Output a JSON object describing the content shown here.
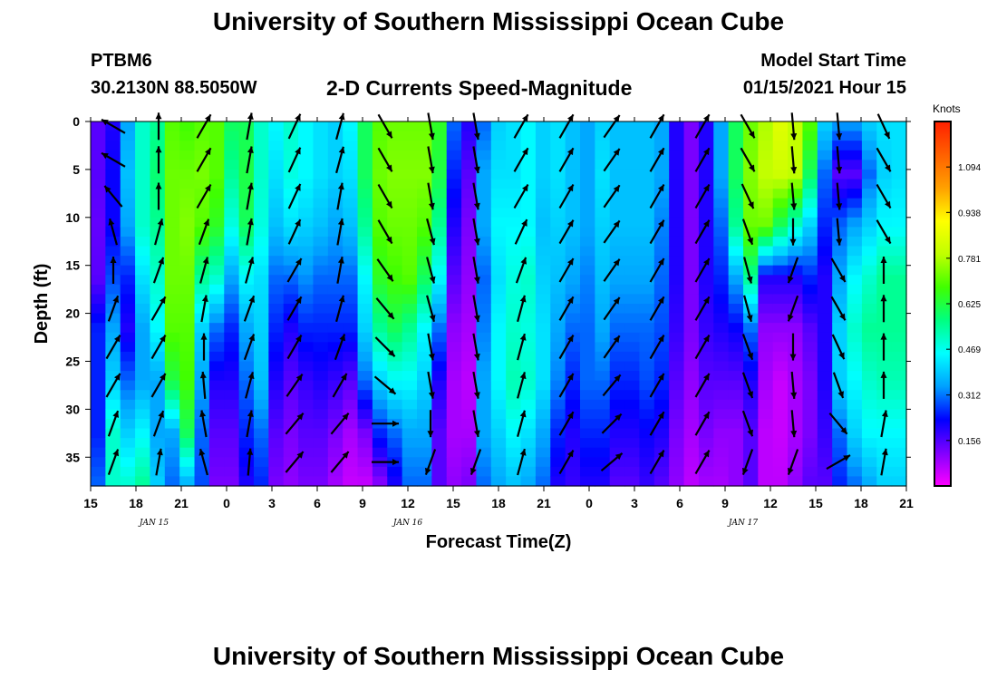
{
  "header": {
    "title": "University of Southern Mississippi Ocean Cube",
    "station": "PTBM6",
    "coords": "30.2130N 88.5050W",
    "subtitle": "2-D Currents Speed-Magnitude",
    "model_start_label": "Model Start Time",
    "model_start_value": "01/15/2021 Hour 15"
  },
  "footer": {
    "title": "University of Southern Mississippi Ocean Cube"
  },
  "chart_data": {
    "type": "heatmap",
    "xlabel": "Forecast Time(Z)",
    "ylabel": "Depth (ft)",
    "x_ticks": [
      "15",
      "18",
      "21",
      "0",
      "3",
      "6",
      "9",
      "12",
      "15",
      "18",
      "21",
      "0",
      "3",
      "6",
      "9",
      "12",
      "15",
      "18",
      "21"
    ],
    "date_labels": [
      {
        "label": "JAN  15",
        "at_tick": 1.4
      },
      {
        "label": "JAN  16",
        "at_tick": 7.0
      },
      {
        "label": "JAN  17",
        "at_tick": 14.4
      }
    ],
    "y_ticks": [
      0,
      5,
      10,
      15,
      20,
      25,
      30,
      35
    ],
    "ylim": [
      0,
      38
    ],
    "colorbar": {
      "unit": "Knots",
      "ticks": [
        "1.094",
        "0.938",
        "0.781",
        "0.625",
        "0.469",
        "0.312",
        "0.156"
      ],
      "range": [
        0,
        1.25
      ],
      "colors": [
        "#ff00ff",
        "#8000ff",
        "#0000ff",
        "#00a0ff",
        "#00ffff",
        "#00ff80",
        "#40ff00",
        "#c0ff00",
        "#ffff00",
        "#ffa000",
        "#ff6000",
        "#ff2000"
      ]
    },
    "columns": [
      {
        "time": "15",
        "profile": [
          0.15,
          0.15,
          0.14,
          0.15,
          0.25,
          0.25,
          0.25,
          0.3
        ]
      },
      {
        "time": "16",
        "profile": [
          0.2,
          0.22,
          0.22,
          0.28,
          0.35,
          0.4,
          0.5,
          0.5
        ]
      },
      {
        "time": "17",
        "profile": [
          0.35,
          0.38,
          0.35,
          0.25,
          0.2,
          0.3,
          0.4,
          0.5
        ]
      },
      {
        "time": "18",
        "profile": [
          0.5,
          0.5,
          0.5,
          0.42,
          0.35,
          0.35,
          0.45,
          0.55
        ]
      },
      {
        "time": "19",
        "profile": [
          0.55,
          0.58,
          0.55,
          0.5,
          0.45,
          0.35,
          0.35,
          0.4
        ]
      },
      {
        "time": "20",
        "profile": [
          0.7,
          0.72,
          0.72,
          0.72,
          0.7,
          0.62,
          0.35,
          0.3
        ]
      },
      {
        "time": "21",
        "profile": [
          0.68,
          0.72,
          0.74,
          0.72,
          0.7,
          0.68,
          0.6,
          0.35
        ]
      },
      {
        "time": "22",
        "profile": [
          0.7,
          0.73,
          0.7,
          0.55,
          0.4,
          0.35,
          0.3,
          0.28
        ]
      },
      {
        "time": "23",
        "profile": [
          0.7,
          0.7,
          0.65,
          0.5,
          0.3,
          0.2,
          0.15,
          0.12
        ]
      },
      {
        "time": "0",
        "profile": [
          0.6,
          0.55,
          0.48,
          0.35,
          0.25,
          0.2,
          0.15,
          0.12
        ]
      },
      {
        "time": "1",
        "profile": [
          0.6,
          0.62,
          0.6,
          0.45,
          0.35,
          0.3,
          0.25,
          0.2
        ]
      },
      {
        "time": "2",
        "profile": [
          0.5,
          0.5,
          0.48,
          0.42,
          0.4,
          0.38,
          0.3,
          0.25
        ]
      },
      {
        "time": "3",
        "profile": [
          0.45,
          0.42,
          0.38,
          0.3,
          0.25,
          0.2,
          0.15,
          0.12
        ]
      },
      {
        "time": "4",
        "profile": [
          0.5,
          0.48,
          0.42,
          0.3,
          0.2,
          0.15,
          0.12,
          0.1
        ]
      },
      {
        "time": "5",
        "profile": [
          0.45,
          0.45,
          0.4,
          0.33,
          0.25,
          0.18,
          0.15,
          0.12
        ]
      },
      {
        "time": "6",
        "profile": [
          0.42,
          0.42,
          0.38,
          0.3,
          0.25,
          0.2,
          0.15,
          0.12
        ]
      },
      {
        "time": "7",
        "profile": [
          0.4,
          0.4,
          0.35,
          0.3,
          0.25,
          0.18,
          0.12,
          0.08
        ]
      },
      {
        "time": "8",
        "profile": [
          0.45,
          0.42,
          0.38,
          0.3,
          0.25,
          0.15,
          0.08,
          0.05
        ]
      },
      {
        "time": "9",
        "profile": [
          0.6,
          0.6,
          0.55,
          0.45,
          0.4,
          0.3,
          0.12,
          0.05
        ]
      },
      {
        "time": "10",
        "profile": [
          0.7,
          0.72,
          0.7,
          0.65,
          0.55,
          0.4,
          0.25,
          0.1
        ]
      },
      {
        "time": "11",
        "profile": [
          0.72,
          0.74,
          0.72,
          0.68,
          0.6,
          0.45,
          0.3,
          0.2
        ]
      },
      {
        "time": "12",
        "profile": [
          0.72,
          0.74,
          0.72,
          0.7,
          0.55,
          0.45,
          0.35,
          0.3
        ]
      },
      {
        "time": "13",
        "profile": [
          0.72,
          0.74,
          0.7,
          0.6,
          0.45,
          0.4,
          0.35,
          0.3
        ]
      },
      {
        "time": "14",
        "profile": [
          0.65,
          0.62,
          0.55,
          0.45,
          0.3,
          0.2,
          0.15,
          0.15
        ]
      },
      {
        "time": "15",
        "profile": [
          0.3,
          0.25,
          0.2,
          0.15,
          0.1,
          0.08,
          0.08,
          0.1
        ]
      },
      {
        "time": "16",
        "profile": [
          0.2,
          0.15,
          0.12,
          0.1,
          0.08,
          0.06,
          0.08,
          0.12
        ]
      },
      {
        "time": "17",
        "profile": [
          0.3,
          0.35,
          0.35,
          0.3,
          0.32,
          0.35,
          0.35,
          0.3
        ]
      },
      {
        "time": "18",
        "profile": [
          0.4,
          0.42,
          0.45,
          0.42,
          0.45,
          0.45,
          0.4,
          0.35
        ]
      },
      {
        "time": "19",
        "profile": [
          0.42,
          0.42,
          0.45,
          0.48,
          0.5,
          0.52,
          0.45,
          0.38
        ]
      },
      {
        "time": "20",
        "profile": [
          0.45,
          0.45,
          0.45,
          0.5,
          0.48,
          0.5,
          0.42,
          0.35
        ]
      },
      {
        "time": "21",
        "profile": [
          0.4,
          0.4,
          0.38,
          0.4,
          0.42,
          0.42,
          0.35,
          0.3
        ]
      },
      {
        "time": "22",
        "profile": [
          0.42,
          0.42,
          0.4,
          0.38,
          0.35,
          0.32,
          0.25,
          0.2
        ]
      },
      {
        "time": "23",
        "profile": [
          0.38,
          0.38,
          0.38,
          0.35,
          0.3,
          0.25,
          0.2,
          0.18
        ]
      },
      {
        "time": "0",
        "profile": [
          0.35,
          0.35,
          0.35,
          0.32,
          0.3,
          0.3,
          0.25,
          0.2
        ]
      },
      {
        "time": "1",
        "profile": [
          0.4,
          0.42,
          0.4,
          0.38,
          0.35,
          0.3,
          0.25,
          0.2
        ]
      },
      {
        "time": "2",
        "profile": [
          0.38,
          0.38,
          0.38,
          0.35,
          0.3,
          0.25,
          0.2,
          0.15
        ]
      },
      {
        "time": "3",
        "profile": [
          0.38,
          0.38,
          0.38,
          0.35,
          0.3,
          0.25,
          0.2,
          0.15
        ]
      },
      {
        "time": "4",
        "profile": [
          0.38,
          0.38,
          0.38,
          0.35,
          0.3,
          0.28,
          0.22,
          0.18
        ]
      },
      {
        "time": "5",
        "profile": [
          0.35,
          0.35,
          0.32,
          0.3,
          0.28,
          0.25,
          0.2,
          0.15
        ]
      },
      {
        "time": "6",
        "profile": [
          0.2,
          0.2,
          0.2,
          0.2,
          0.18,
          0.15,
          0.12,
          0.1
        ]
      },
      {
        "time": "7",
        "profile": [
          0.12,
          0.12,
          0.12,
          0.12,
          0.12,
          0.1,
          0.08,
          0.06
        ]
      },
      {
        "time": "8",
        "profile": [
          0.2,
          0.2,
          0.2,
          0.2,
          0.18,
          0.15,
          0.12,
          0.08
        ]
      },
      {
        "time": "9",
        "profile": [
          0.35,
          0.35,
          0.3,
          0.25,
          0.2,
          0.15,
          0.1,
          0.08
        ]
      },
      {
        "time": "10",
        "profile": [
          0.6,
          0.6,
          0.55,
          0.35,
          0.22,
          0.15,
          0.1,
          0.1
        ]
      },
      {
        "time": "11",
        "profile": [
          0.72,
          0.74,
          0.72,
          0.55,
          0.3,
          0.2,
          0.15,
          0.15
        ]
      },
      {
        "time": "12",
        "profile": [
          0.78,
          0.8,
          0.72,
          0.2,
          0.1,
          0.08,
          0.06,
          0.06
        ]
      },
      {
        "time": "13",
        "profile": [
          0.85,
          0.82,
          0.6,
          0.2,
          0.1,
          0.05,
          0.05,
          0.06
        ]
      },
      {
        "time": "14",
        "profile": [
          0.8,
          0.8,
          0.5,
          0.2,
          0.1,
          0.08,
          0.08,
          0.1
        ]
      },
      {
        "time": "15",
        "profile": [
          0.7,
          0.6,
          0.4,
          0.25,
          0.15,
          0.12,
          0.12,
          0.15
        ]
      },
      {
        "time": "16",
        "profile": [
          0.4,
          0.3,
          0.25,
          0.2,
          0.2,
          0.2,
          0.18,
          0.15
        ]
      },
      {
        "time": "17",
        "profile": [
          0.35,
          0.15,
          0.3,
          0.35,
          0.4,
          0.4,
          0.3,
          0.25
        ]
      },
      {
        "time": "18",
        "profile": [
          0.35,
          0.15,
          0.35,
          0.45,
          0.5,
          0.45,
          0.4,
          0.3
        ]
      },
      {
        "time": "19",
        "profile": [
          0.4,
          0.3,
          0.4,
          0.5,
          0.55,
          0.5,
          0.45,
          0.35
        ]
      },
      {
        "time": "20",
        "profile": [
          0.42,
          0.4,
          0.45,
          0.55,
          0.55,
          0.52,
          0.45,
          0.4
        ]
      },
      {
        "time": "21",
        "profile": [
          0.42,
          0.42,
          0.45,
          0.55,
          0.55,
          0.52,
          0.45,
          0.4
        ]
      }
    ],
    "vectors": {
      "depths": [
        0.5,
        4,
        7.8,
        11.5,
        15.5,
        19.5,
        23.5,
        27.5,
        31.5,
        35.5
      ],
      "times": [
        {
          "time": "16",
          "angles": [
            300,
            300,
            320,
            345,
            0,
            20,
            30,
            30,
            20,
            20
          ]
        },
        {
          "time": "18",
          "angles": [
            0,
            0,
            0,
            15,
            20,
            30,
            30,
            30,
            20,
            10
          ]
        },
        {
          "time": "21",
          "angles": [
            30,
            30,
            30,
            20,
            15,
            10,
            0,
            355,
            350,
            345
          ]
        },
        {
          "time": "0",
          "angles": [
            10,
            10,
            10,
            10,
            15,
            20,
            20,
            15,
            10,
            5
          ]
        },
        {
          "time": "3",
          "angles": [
            25,
            25,
            25,
            25,
            30,
            30,
            30,
            35,
            40,
            40
          ]
        },
        {
          "time": "6",
          "angles": [
            15,
            15,
            10,
            10,
            10,
            15,
            20,
            30,
            40,
            40
          ]
        },
        {
          "time": "9",
          "angles": [
            150,
            150,
            150,
            150,
            145,
            140,
            135,
            130,
            90,
            90
          ]
        },
        {
          "time": "12",
          "angles": [
            170,
            170,
            170,
            165,
            165,
            165,
            170,
            170,
            180,
            200
          ]
        },
        {
          "time": "15",
          "angles": [
            170,
            170,
            170,
            170,
            170,
            170,
            170,
            170,
            170,
            200
          ]
        },
        {
          "time": "18",
          "angles": [
            30,
            30,
            30,
            25,
            20,
            15,
            15,
            15,
            15,
            15
          ]
        },
        {
          "time": "21",
          "angles": [
            30,
            30,
            30,
            30,
            30,
            30,
            30,
            30,
            30,
            30
          ]
        },
        {
          "time": "0",
          "angles": [
            35,
            35,
            35,
            35,
            35,
            35,
            35,
            40,
            45,
            50
          ]
        },
        {
          "time": "3",
          "angles": [
            30,
            30,
            30,
            30,
            30,
            30,
            30,
            30,
            30,
            30
          ]
        },
        {
          "time": "6",
          "angles": [
            30,
            30,
            30,
            30,
            30,
            30,
            30,
            30,
            30,
            30
          ]
        },
        {
          "time": "9",
          "angles": [
            150,
            150,
            155,
            160,
            165,
            165,
            160,
            160,
            160,
            200
          ]
        },
        {
          "time": "12",
          "angles": [
            175,
            175,
            175,
            180,
            200,
            200,
            180,
            175,
            175,
            200
          ]
        },
        {
          "time": "15",
          "angles": [
            175,
            175,
            175,
            175,
            150,
            150,
            155,
            160,
            140,
            60
          ]
        },
        {
          "time": "18",
          "angles": [
            155,
            150,
            150,
            150,
            0,
            0,
            0,
            0,
            10,
            10
          ]
        }
      ]
    }
  }
}
